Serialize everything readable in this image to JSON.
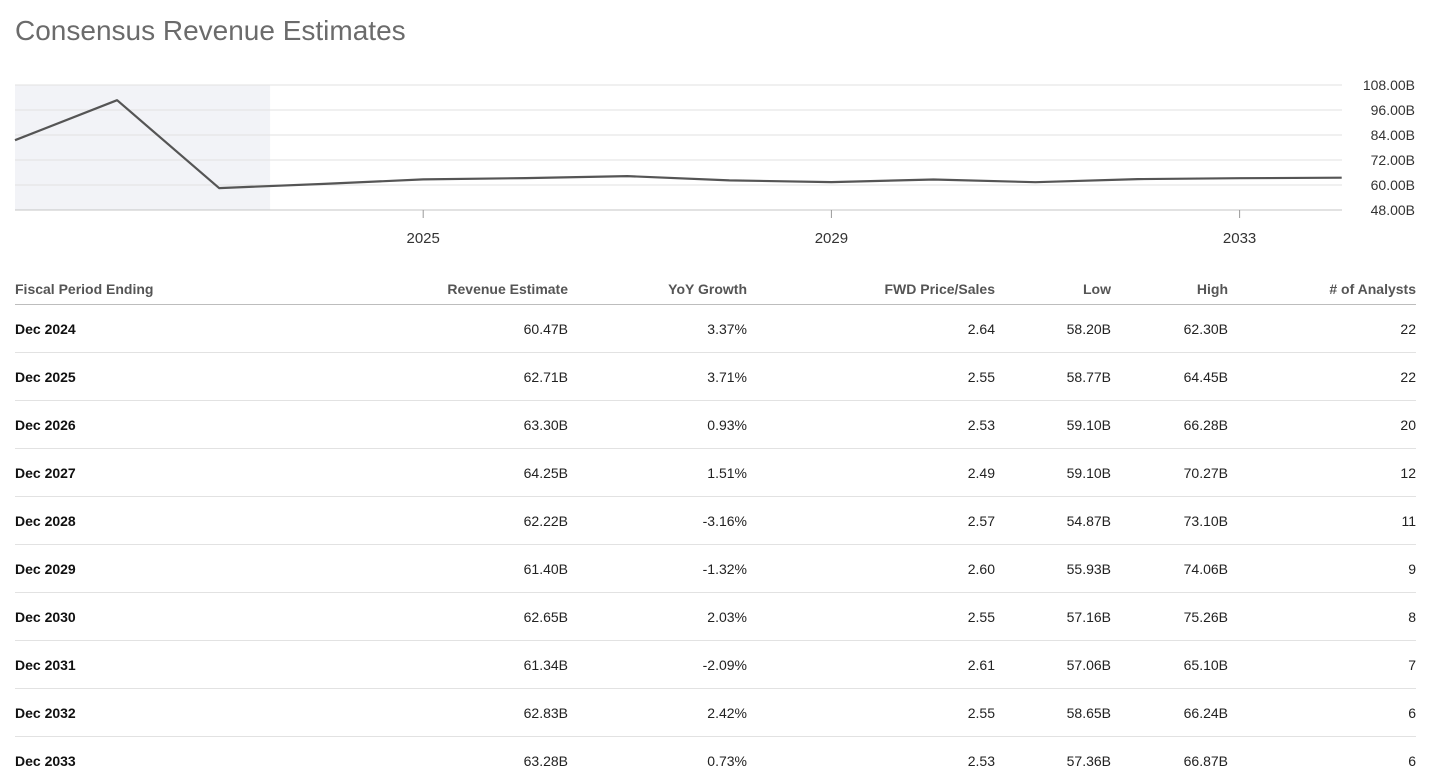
{
  "title": "Consensus Revenue Estimates",
  "chart_data": {
    "type": "line",
    "x": [
      2021,
      2022,
      2023,
      2024,
      2025,
      2026,
      2027,
      2028,
      2029,
      2030,
      2031,
      2032,
      2033,
      2034
    ],
    "values": [
      81.5,
      100.7,
      58.5,
      60.47,
      62.71,
      63.3,
      64.25,
      62.22,
      61.4,
      62.65,
      61.34,
      62.83,
      63.28,
      63.5
    ],
    "actual_until": 2023.5,
    "x_ticks": [
      "2025",
      "2029",
      "2033"
    ],
    "y_ticks": [
      "108.00B",
      "96.00B",
      "84.00B",
      "72.00B",
      "60.00B",
      "48.00B"
    ],
    "ylim": [
      48,
      108
    ],
    "line_color": "#555555",
    "shade_color": "#f2f3f7",
    "grid": true
  },
  "table": {
    "headers": [
      "Fiscal Period Ending",
      "Revenue Estimate",
      "YoY Growth",
      "FWD Price/Sales",
      "Low",
      "High",
      "# of Analysts"
    ],
    "rows": [
      [
        "Dec 2024",
        "60.47B",
        "3.37%",
        "2.64",
        "58.20B",
        "62.30B",
        "22"
      ],
      [
        "Dec 2025",
        "62.71B",
        "3.71%",
        "2.55",
        "58.77B",
        "64.45B",
        "22"
      ],
      [
        "Dec 2026",
        "63.30B",
        "0.93%",
        "2.53",
        "59.10B",
        "66.28B",
        "20"
      ],
      [
        "Dec 2027",
        "64.25B",
        "1.51%",
        "2.49",
        "59.10B",
        "70.27B",
        "12"
      ],
      [
        "Dec 2028",
        "62.22B",
        "-3.16%",
        "2.57",
        "54.87B",
        "73.10B",
        "11"
      ],
      [
        "Dec 2029",
        "61.40B",
        "-1.32%",
        "2.60",
        "55.93B",
        "74.06B",
        "9"
      ],
      [
        "Dec 2030",
        "62.65B",
        "2.03%",
        "2.55",
        "57.16B",
        "75.26B",
        "8"
      ],
      [
        "Dec 2031",
        "61.34B",
        "-2.09%",
        "2.61",
        "57.06B",
        "65.10B",
        "7"
      ],
      [
        "Dec 2032",
        "62.83B",
        "2.42%",
        "2.55",
        "58.65B",
        "66.24B",
        "6"
      ],
      [
        "Dec 2033",
        "63.28B",
        "0.73%",
        "2.53",
        "57.36B",
        "66.87B",
        "6"
      ]
    ]
  }
}
